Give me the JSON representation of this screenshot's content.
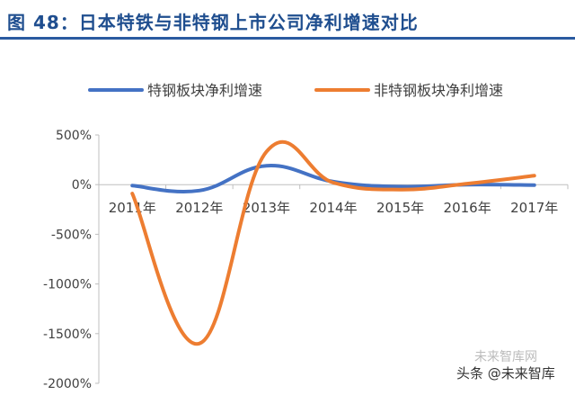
{
  "header": {
    "title": "图 48：日本特铁与非特钢上市公司净利增速对比"
  },
  "chart_data": {
    "type": "line",
    "title": "",
    "xlabel": "",
    "ylabel": "",
    "categories": [
      "2011年",
      "2012年",
      "2013年",
      "2014年",
      "2015年",
      "2016年",
      "2017年"
    ],
    "ylim": [
      -2000,
      500
    ],
    "yticks": [
      500,
      0,
      -500,
      -1000,
      -1500,
      -2000
    ],
    "ytick_labels": [
      "500%",
      "0%",
      "-500%",
      "-1000%",
      "-1500%",
      "-2000%"
    ],
    "legend_position": "top",
    "grid": false,
    "smooth": true,
    "series": [
      {
        "name": "特钢板块净利增速",
        "color": "#4472c4",
        "values": [
          -10,
          -60,
          190,
          30,
          -20,
          0,
          -5
        ]
      },
      {
        "name": "非特钢板块净利增速",
        "color": "#ed7d31",
        "values": [
          -90,
          -1600,
          330,
          20,
          -50,
          10,
          90
        ]
      }
    ]
  },
  "watermark": {
    "top_text": "未来智库网",
    "text": "头条 @未来智库"
  }
}
